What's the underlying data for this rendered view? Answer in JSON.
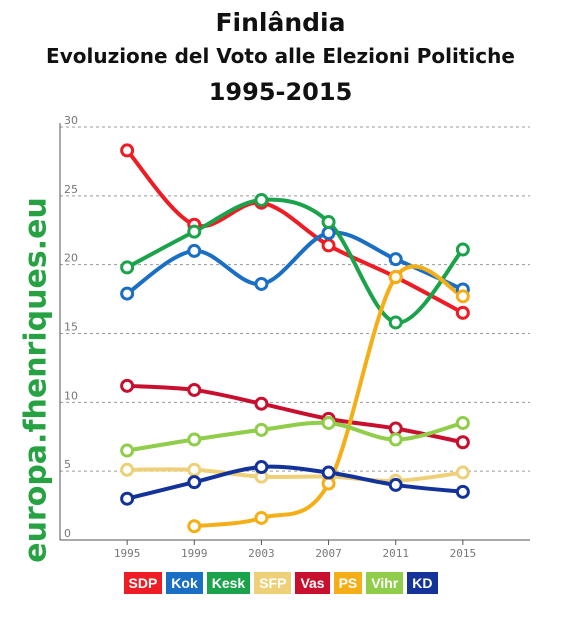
{
  "header": {
    "title": "Finlândia",
    "subtitle": "Evoluzione del Voto alle Elezioni Politiche",
    "years": "1995-2015"
  },
  "watermark": "europa.fhenriques.eu",
  "chart_data": {
    "type": "line",
    "x": [
      1995,
      1999,
      2003,
      2007,
      2011,
      2015
    ],
    "xticks": [
      "1995",
      "1999",
      "2003",
      "2007",
      "2011",
      "2015"
    ],
    "yticks": [
      "0",
      "5",
      "10",
      "15",
      "20",
      "25",
      "30"
    ],
    "ylim": [
      0,
      30
    ],
    "xlim": [
      1991,
      2019
    ],
    "grid": "horizontal-dashed",
    "legend_placement": "bottom",
    "series": [
      {
        "name": "SDP",
        "color": "#ee1c25",
        "values": [
          28.3,
          22.9,
          24.5,
          21.4,
          19.1,
          16.5
        ]
      },
      {
        "name": "Kok",
        "color": "#1a6fc4",
        "values": [
          17.9,
          21.0,
          18.6,
          22.3,
          20.4,
          18.2
        ]
      },
      {
        "name": "Kesk",
        "color": "#1aa34a",
        "values": [
          19.8,
          22.4,
          24.7,
          23.1,
          15.8,
          21.1
        ]
      },
      {
        "name": "SFP",
        "color": "#eed078",
        "values": [
          5.1,
          5.1,
          4.6,
          4.6,
          4.3,
          4.9
        ]
      },
      {
        "name": "Vas",
        "color": "#c8102e",
        "values": [
          11.2,
          10.9,
          9.9,
          8.8,
          8.1,
          7.1
        ]
      },
      {
        "name": "PS",
        "color": "#f5ae16",
        "values": [
          null,
          1.0,
          1.6,
          4.1,
          19.1,
          17.7
        ]
      },
      {
        "name": "Vihr",
        "color": "#8fcd4b",
        "values": [
          6.5,
          7.3,
          8.0,
          8.5,
          7.3,
          8.5
        ]
      },
      {
        "name": "KD",
        "color": "#13339a",
        "values": [
          3.0,
          4.2,
          5.3,
          4.9,
          4.0,
          3.5
        ]
      }
    ]
  }
}
